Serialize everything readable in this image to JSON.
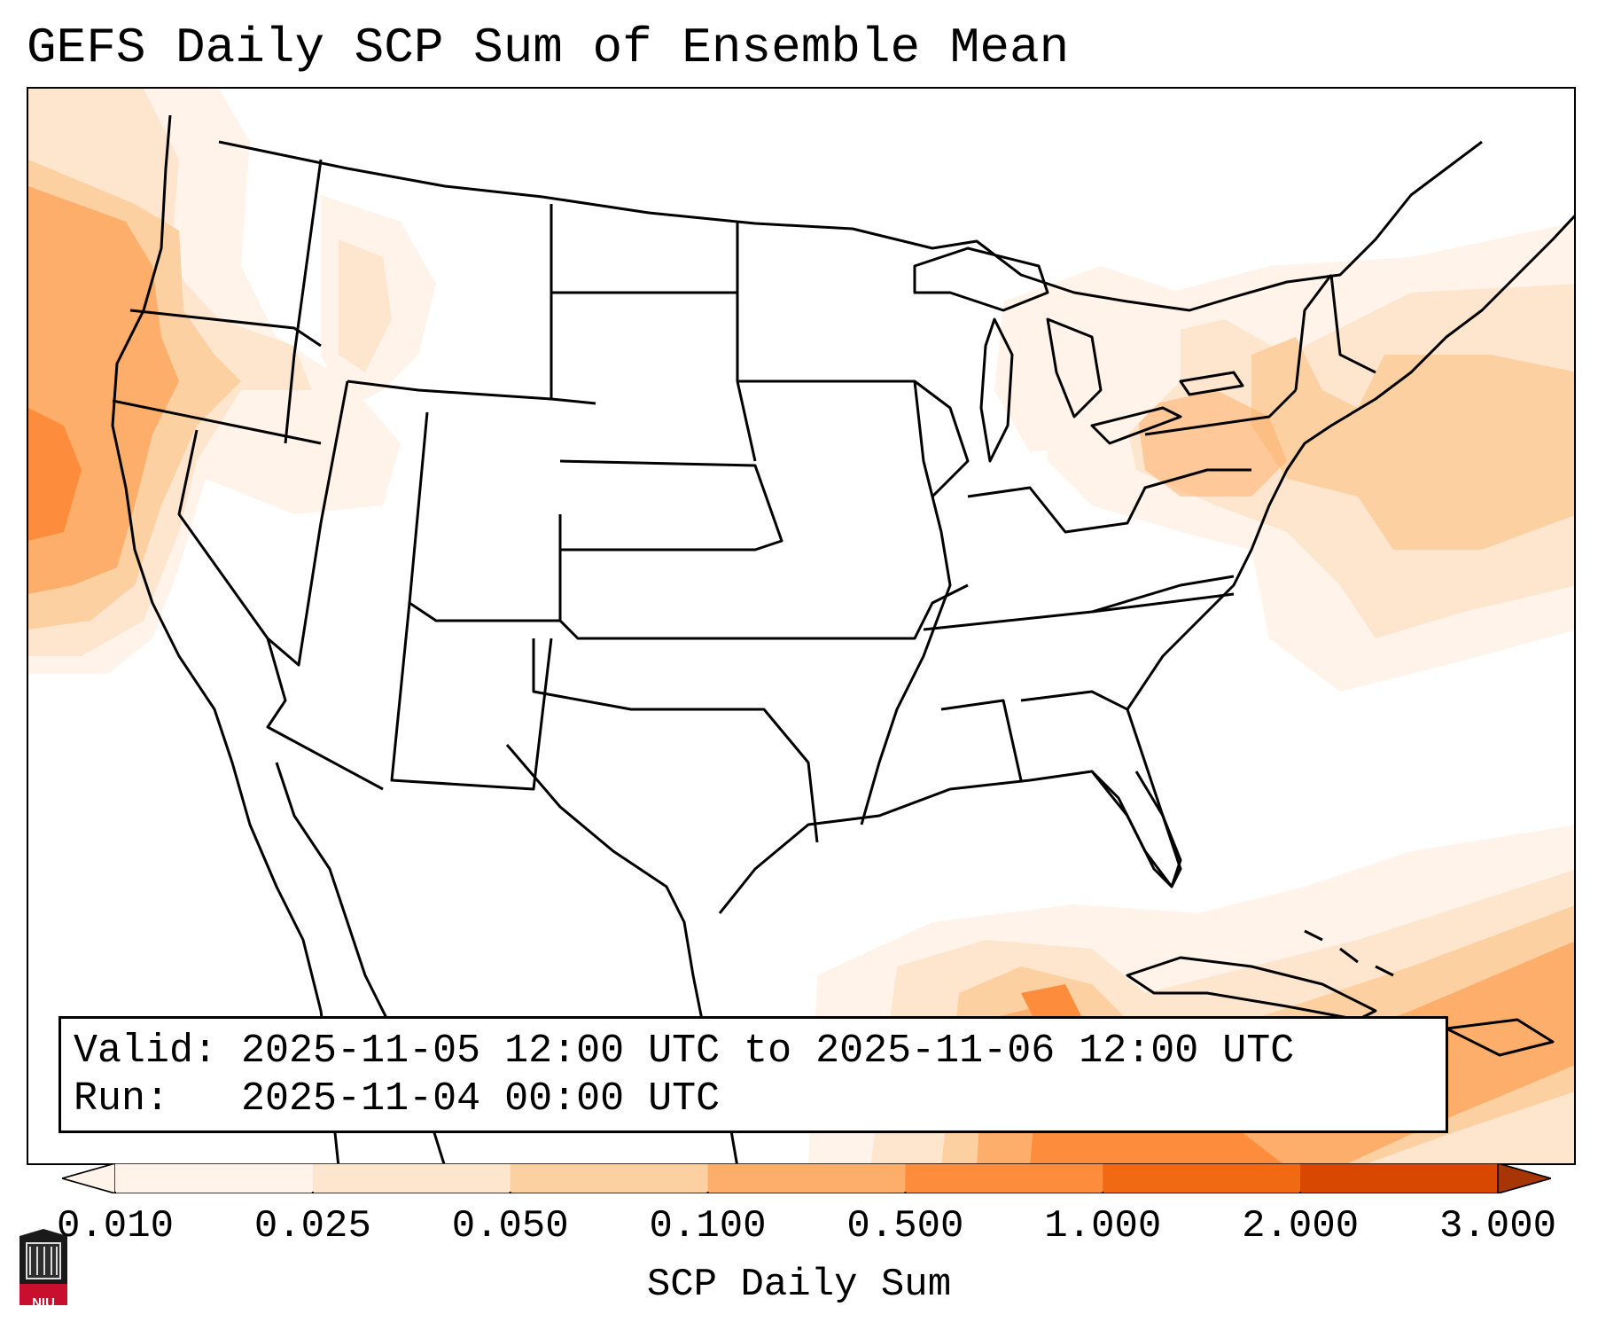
{
  "title": "GEFS Daily SCP Sum of Ensemble Mean",
  "info": {
    "valid_label": "Valid:",
    "valid_value": "2025-11-05 12:00 UTC to 2025-11-06 12:00 UTC",
    "run_label": "Run:",
    "run_value": "2025-11-04 00:00 UTC"
  },
  "colorbar": {
    "title": "SCP Daily Sum",
    "ticks": [
      "0.010",
      "0.025",
      "0.050",
      "0.100",
      "0.500",
      "1.000",
      "2.000",
      "3.000"
    ],
    "colors": [
      "#fff3ea",
      "#fee6ce",
      "#fdd0a2",
      "#fdae6b",
      "#fd8d3c",
      "#f16913",
      "#d94801",
      "#a63603"
    ],
    "extend": "both"
  },
  "colors": {
    "level1": "#fff3ea",
    "level2": "#fee6ce",
    "level3": "#fdd0a2",
    "level4": "#fdae6b",
    "level5": "#fd8d3c",
    "boundary": "#000000"
  },
  "logo": {
    "text": "NIU"
  }
}
